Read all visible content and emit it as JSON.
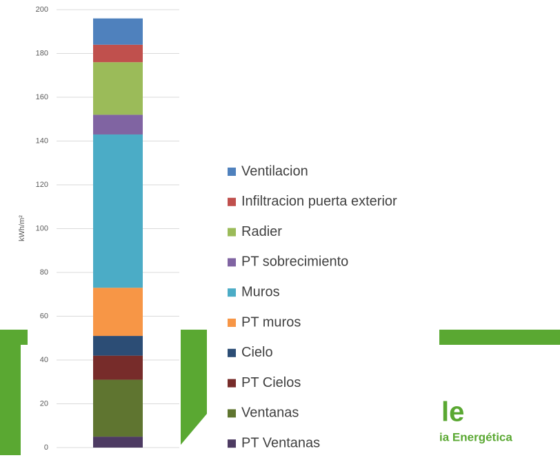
{
  "chart_data": {
    "type": "stacked_bar",
    "y_label": "kWh/m²",
    "ylim": [
      0,
      200
    ],
    "yticks": [
      0,
      20,
      40,
      60,
      80,
      100,
      120,
      140,
      160,
      180,
      200
    ],
    "grid": true,
    "series": [
      {
        "name": "PT Ventanas",
        "color": "#4d3b62",
        "values": [
          5
        ]
      },
      {
        "name": "Ventanas",
        "color": "#5f7530",
        "values": [
          26
        ]
      },
      {
        "name": "PT Cielos",
        "color": "#772c2a",
        "values": [
          11
        ]
      },
      {
        "name": "Cielo",
        "color": "#2c4d75",
        "values": [
          9
        ]
      },
      {
        "name": "PT muros",
        "color": "#f79646",
        "values": [
          22
        ]
      },
      {
        "name": "Muros",
        "color": "#4bacc6",
        "values": [
          70
        ]
      },
      {
        "name": "PT sobrecimiento",
        "color": "#8064a2",
        "values": [
          9
        ]
      },
      {
        "name": "Radier",
        "color": "#9bbb59",
        "values": [
          24
        ]
      },
      {
        "name": "Infiltracion puerta exterior",
        "color": "#c0504d",
        "values": [
          8
        ]
      },
      {
        "name": "Ventilacion",
        "color": "#4f81bd",
        "values": [
          12
        ]
      }
    ]
  },
  "logo": {
    "text": "le",
    "subtitle": "ia Energética"
  }
}
